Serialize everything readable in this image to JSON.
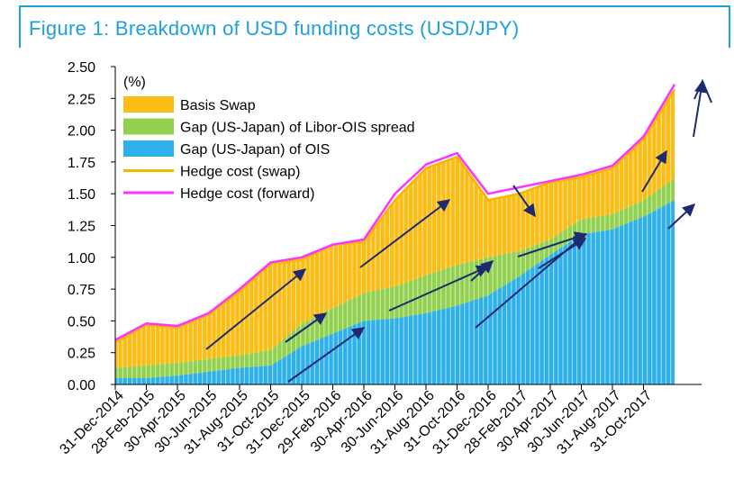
{
  "figure": {
    "title": "Figure 1: Breakdown of USD funding costs (USD/JPY)"
  },
  "chart_data": {
    "type": "area",
    "title": "Figure 1: Breakdown of USD funding costs (USD/JPY)",
    "ylabel": "(%)",
    "ylim": [
      0,
      2.5
    ],
    "yticks": [
      "0.00",
      "0.25",
      "0.50",
      "0.75",
      "1.00",
      "1.25",
      "1.50",
      "1.75",
      "2.00",
      "2.25",
      "2.50"
    ],
    "xticks": [
      "31-Dec-2014",
      "28-Feb-2015",
      "30-Apr-2015",
      "30-Jun-2015",
      "31-Aug-2015",
      "31-Oct-2015",
      "31-Dec-2015",
      "29-Feb-2016",
      "30-Apr-2016",
      "30-Jun-2016",
      "31-Aug-2016",
      "31-Oct-2016",
      "31-Dec-2016",
      "28-Feb-2017",
      "30-Apr-2017",
      "30-Jun-2017",
      "31-Aug-2017",
      "31-Oct-2017"
    ],
    "legend_position": "top-left",
    "legend": {
      "basis": "Basis Swap",
      "libor": "Gap (US-Japan) of Libor-OIS spread",
      "ois": "Gap (US-Japan) of OIS",
      "swap": "Hedge cost (swap)",
      "fwd": "Hedge cost (forward)"
    },
    "colors": {
      "basis": "#fbbc14",
      "libor": "#92d050",
      "ois": "#2eb0ea",
      "swap": "#f5b800",
      "fwd": "#ff33ff",
      "arrow": "#1f2a6e"
    },
    "x": [
      "2014-12-31",
      "2015-02-28",
      "2015-04-30",
      "2015-06-30",
      "2015-08-31",
      "2015-10-31",
      "2015-12-31",
      "2016-02-29",
      "2016-04-30",
      "2016-06-30",
      "2016-08-31",
      "2016-10-31",
      "2016-12-31",
      "2017-02-28",
      "2017-04-30",
      "2017-06-30",
      "2017-08-31",
      "2017-10-31",
      "2017-12-20"
    ],
    "series": [
      {
        "name": "Gap (US-Japan) of OIS",
        "values": [
          0.05,
          0.05,
          0.07,
          0.1,
          0.13,
          0.15,
          0.3,
          0.4,
          0.5,
          0.52,
          0.56,
          0.62,
          0.7,
          0.85,
          1.02,
          1.18,
          1.22,
          1.32,
          1.45
        ]
      },
      {
        "name": "Gap (US-Japan) of Libor-OIS spread",
        "values": [
          0.08,
          0.1,
          0.1,
          0.1,
          0.1,
          0.12,
          0.18,
          0.2,
          0.22,
          0.25,
          0.3,
          0.32,
          0.3,
          0.2,
          0.12,
          0.12,
          0.12,
          0.13,
          0.17
        ]
      },
      {
        "name": "Basis Swap",
        "values": [
          0.2,
          0.32,
          0.28,
          0.35,
          0.5,
          0.68,
          0.5,
          0.5,
          0.4,
          0.68,
          0.84,
          0.85,
          0.45,
          0.45,
          0.45,
          0.33,
          0.36,
          0.48,
          0.7
        ]
      },
      {
        "name": "Hedge cost (swap)",
        "values": [
          0.33,
          0.47,
          0.45,
          0.55,
          0.73,
          0.95,
          0.98,
          1.1,
          1.12,
          1.45,
          1.7,
          1.79,
          1.45,
          1.5,
          1.59,
          1.63,
          1.7,
          1.93,
          2.32
        ]
      },
      {
        "name": "Hedge cost (forward)",
        "values": [
          0.35,
          0.48,
          0.46,
          0.56,
          0.75,
          0.96,
          1.0,
          1.1,
          1.14,
          1.5,
          1.73,
          1.82,
          1.5,
          1.55,
          1.6,
          1.65,
          1.72,
          1.95,
          2.36
        ]
      }
    ]
  }
}
